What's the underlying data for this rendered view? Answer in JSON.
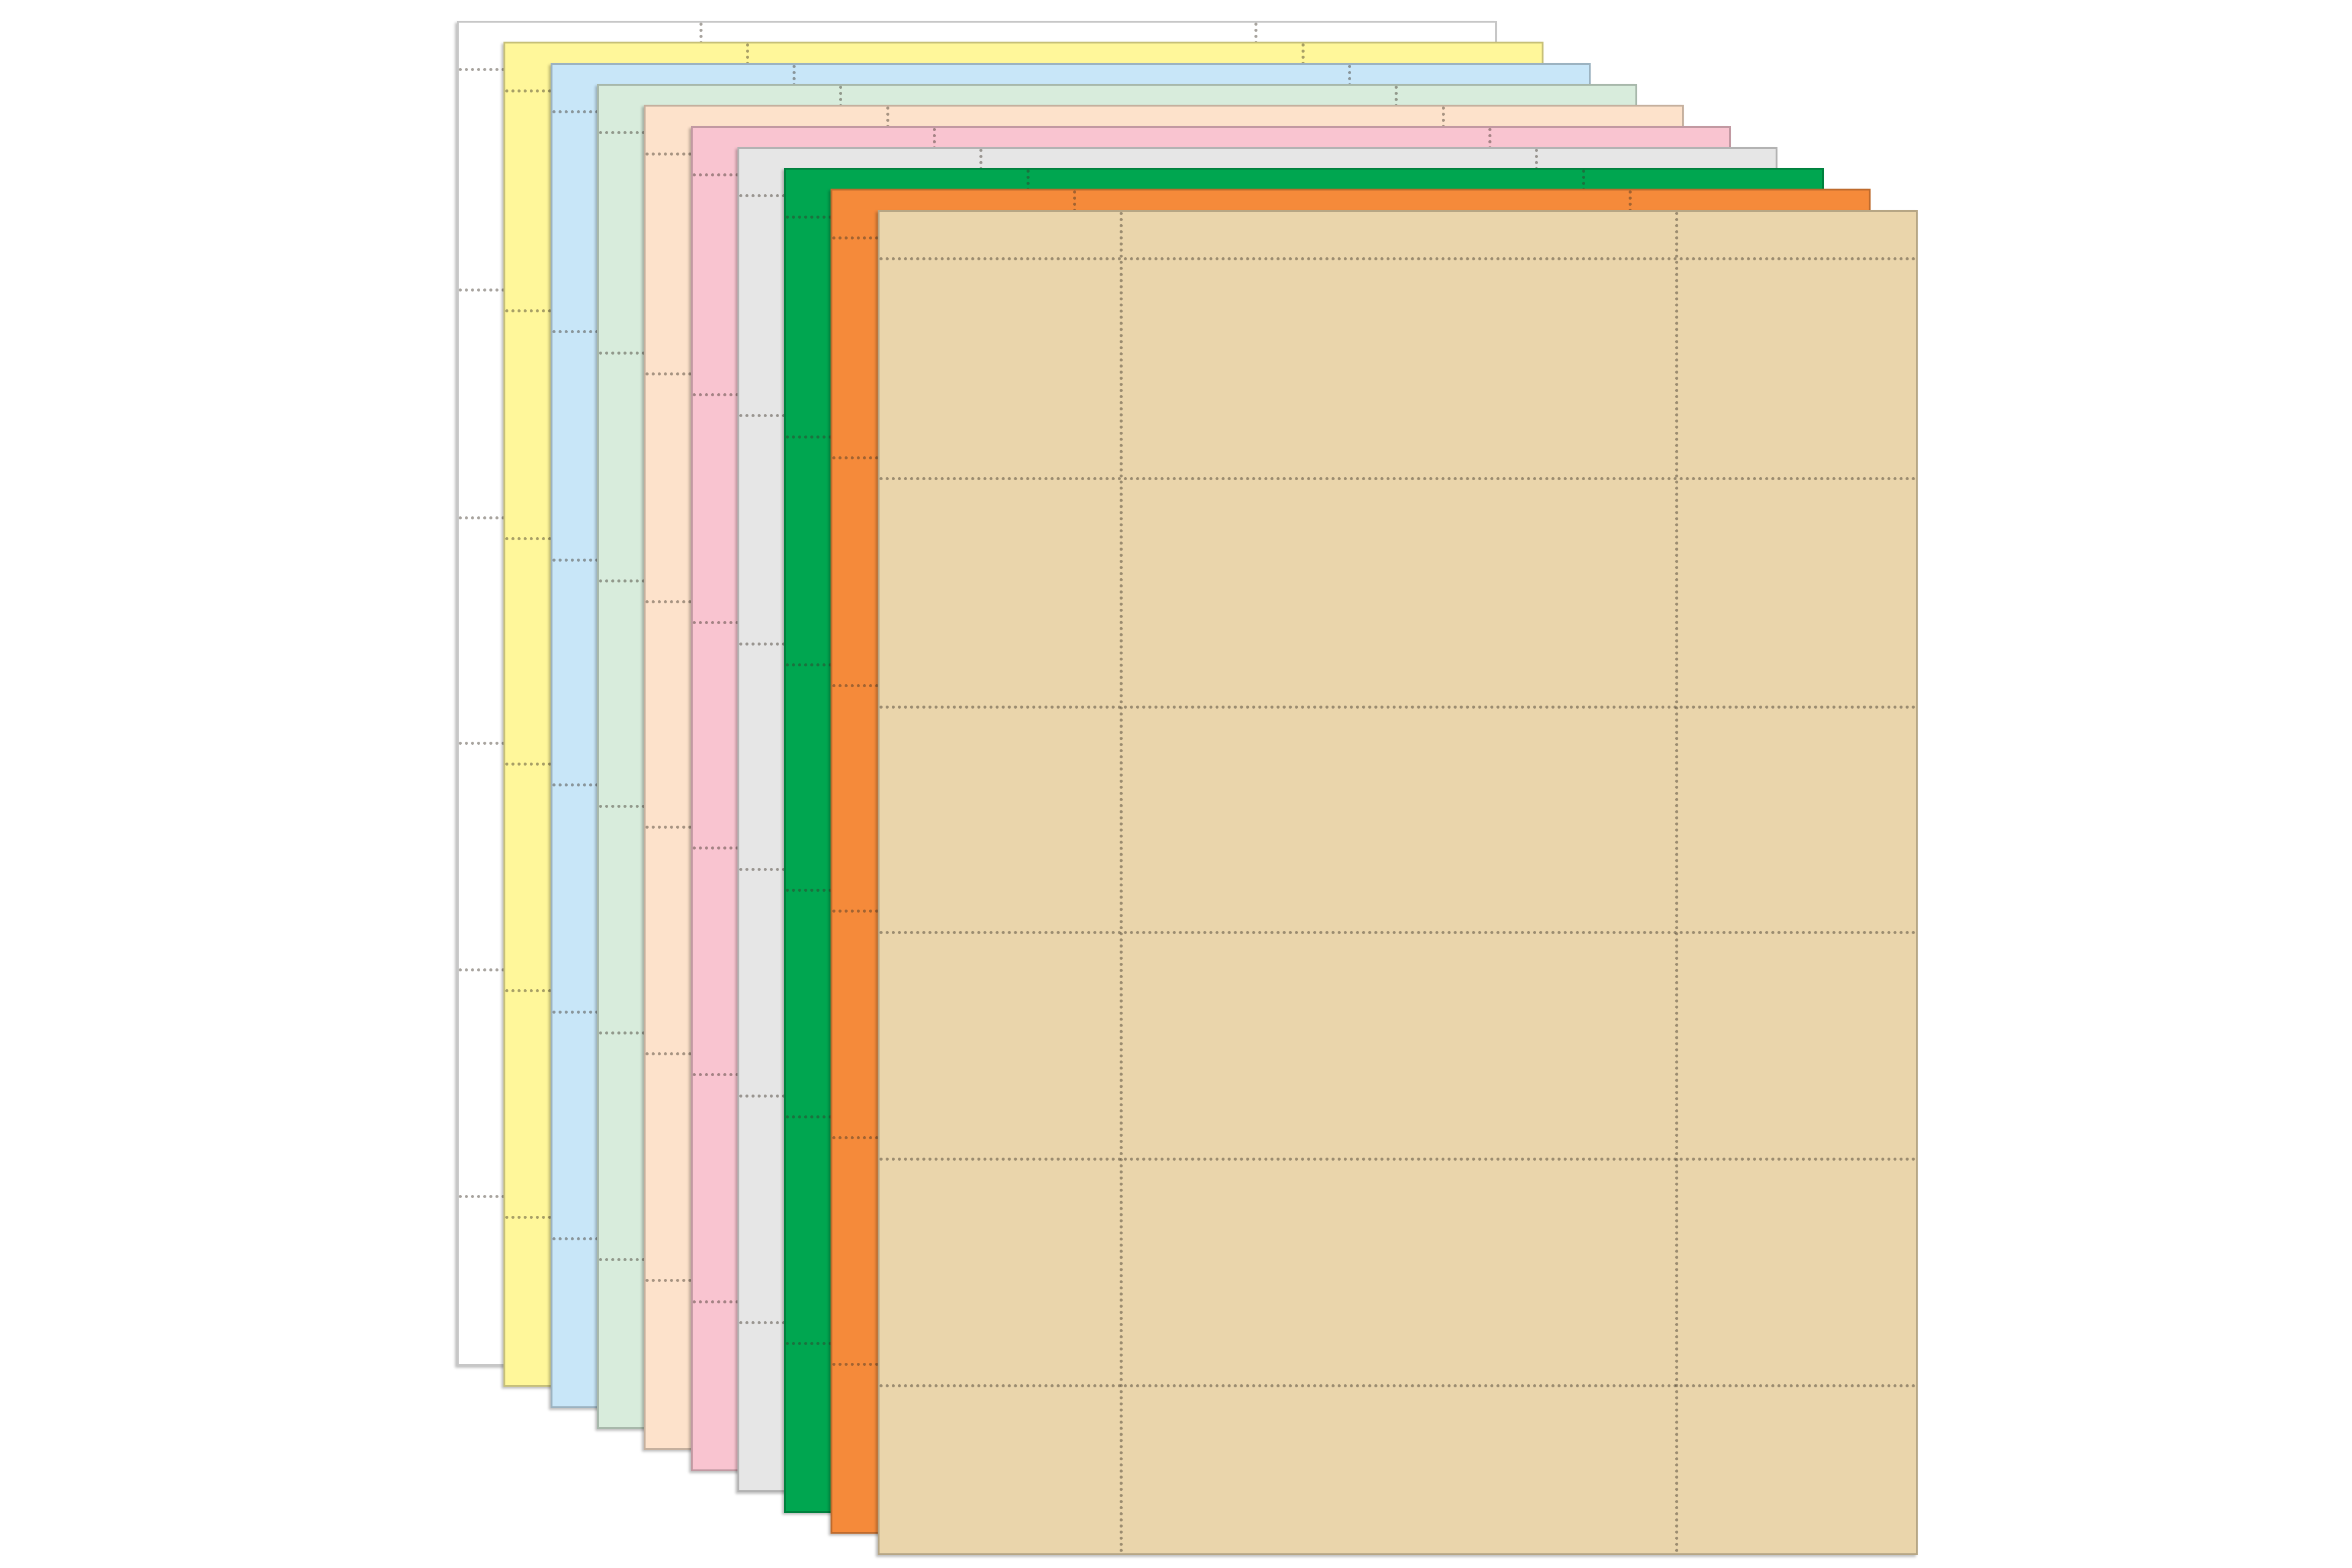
{
  "product": {
    "sheets": [
      {
        "color_name": "white",
        "color": "#ffffff"
      },
      {
        "color_name": "yellow",
        "color": "#fff79a"
      },
      {
        "color_name": "light-blue",
        "color": "#c8e6f8"
      },
      {
        "color_name": "light-green",
        "color": "#d8ecdc"
      },
      {
        "color_name": "peach",
        "color": "#fde2cb"
      },
      {
        "color_name": "pink",
        "color": "#f9c4d0"
      },
      {
        "color_name": "gray",
        "color": "#e6e6e6"
      },
      {
        "color_name": "green",
        "color": "#00a650"
      },
      {
        "color_name": "orange",
        "color": "#f58a3a"
      },
      {
        "color_name": "tan",
        "color": "#ead5ab"
      }
    ],
    "perforation_columns": 3,
    "perforation_rows": 6
  }
}
